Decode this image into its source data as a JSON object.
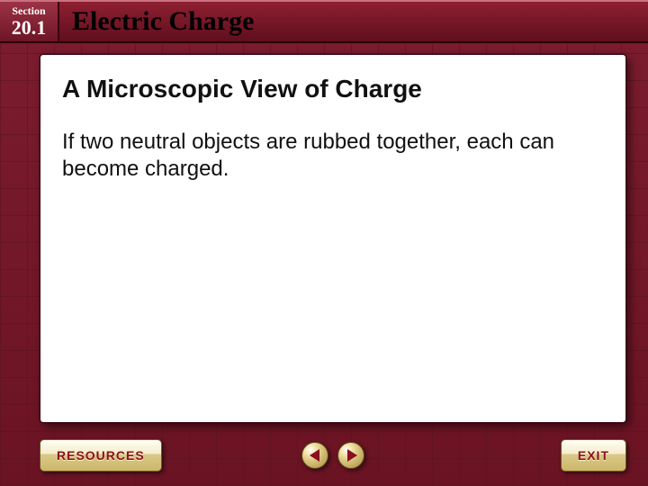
{
  "header": {
    "section_label": "Section",
    "section_number": "20.1",
    "chapter_title": "Electric Charge"
  },
  "content": {
    "slide_title": "A Microscopic View of Charge",
    "body_text": "If two neutral objects are rubbed together, each can become charged."
  },
  "nav": {
    "resources_label": "RESOURCES",
    "exit_label": "EXIT"
  },
  "style": {
    "background_primary": "#6a1323",
    "header_gradient_top": "#8e1f31",
    "header_gradient_bottom": "#5f0f1e",
    "panel_background": "#ffffff",
    "tab_text_color": "#8a0f1f",
    "title_fontsize_pt": 28,
    "body_fontsize_pt": 24
  }
}
